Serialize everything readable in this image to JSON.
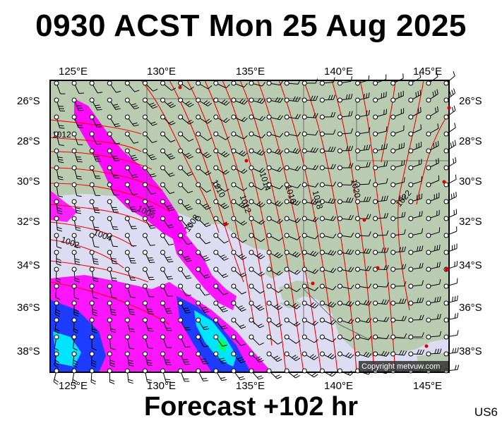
{
  "title": "0930 ACST Mon 25 Aug 2025",
  "footer": "Forecast +102 hr",
  "code": "US6",
  "copyright": "Copyright metvuw.com",
  "map": {
    "lon_labels": [
      "125°E",
      "130°E",
      "135°E",
      "140°E",
      "145°E"
    ],
    "lat_labels": [
      "26°S",
      "28°S",
      "30°S",
      "32°S",
      "34°S",
      "36°S",
      "38°S"
    ],
    "isobar_labels": [
      "1002",
      "1004",
      "1006",
      "1008",
      "1010",
      "1012",
      "1014",
      "1016",
      "1018",
      "1020",
      "1022",
      "1012"
    ],
    "colors": {
      "land": "#b9ccb2",
      "sea": "#dcdcf2",
      "isobars": "#ff0000",
      "rain_light": "#ff00ff",
      "rain_medium": "#1e3cff",
      "rain_heavy": "#00e5ff",
      "rain_extreme": "#00ff66"
    }
  }
}
